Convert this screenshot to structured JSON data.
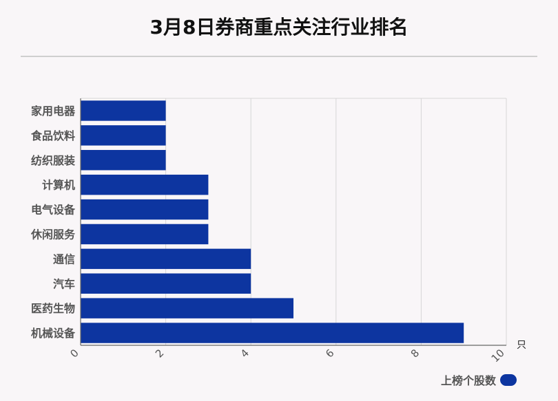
{
  "title": "3月8日券商重点关注行业排名",
  "chart_data": {
    "type": "bar",
    "orientation": "horizontal",
    "categories": [
      "家用电器",
      "食品饮料",
      "纺织服装",
      "计算机",
      "电气设备",
      "休闲服务",
      "通信",
      "汽车",
      "医药生物",
      "机械设备"
    ],
    "series": [
      {
        "name": "上榜个股数",
        "values": [
          2,
          2,
          2,
          3,
          3,
          3,
          4,
          4,
          5,
          9
        ]
      }
    ],
    "xlim": [
      0,
      10
    ],
    "x_ticks": [
      0,
      2,
      4,
      6,
      8,
      10
    ],
    "x_unit": "只",
    "grid": true,
    "legend": "bottom-right",
    "bar_color": "#0d35a0"
  }
}
